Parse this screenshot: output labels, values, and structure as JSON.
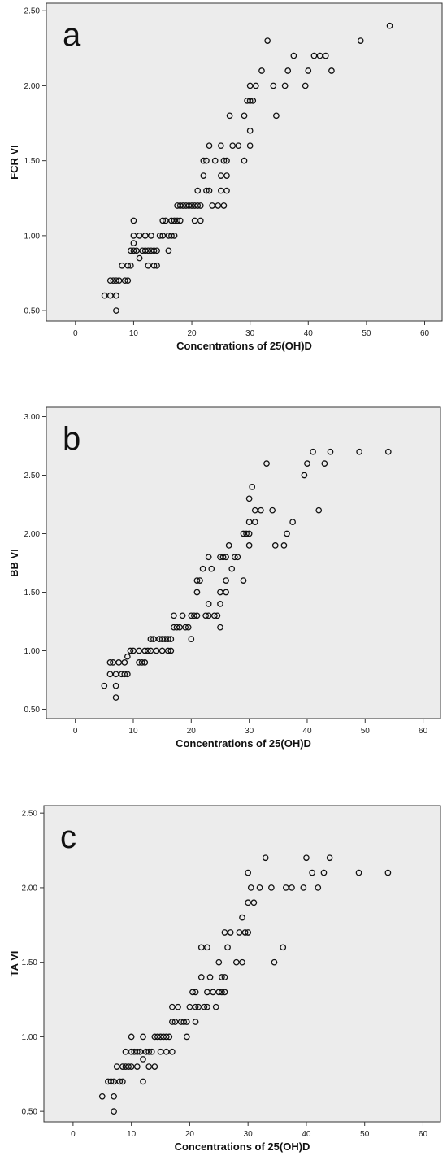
{
  "chart_data": [
    {
      "type": "scatter",
      "panel_label": "a",
      "xlabel": "Concentrations of 25(OH)D",
      "ylabel": "FCR VI",
      "xlim": [
        -5,
        63
      ],
      "ylim": [
        0.43,
        2.55
      ],
      "x_ticks": [
        0,
        10,
        20,
        30,
        40,
        50,
        60
      ],
      "y_ticks": [
        0.5,
        1.0,
        1.5,
        2.0,
        2.5
      ],
      "y_tick_labels": [
        "0.50",
        "1.00",
        "1.50",
        "2.00",
        "2.50"
      ],
      "x_tick_labels": [
        "0",
        "10",
        "20",
        "30",
        "40",
        "50",
        "60"
      ],
      "grid": false,
      "marker": "open-circle",
      "points": [
        [
          5,
          0.6
        ],
        [
          6,
          0.7
        ],
        [
          6,
          0.6
        ],
        [
          6.5,
          0.7
        ],
        [
          7,
          0.6
        ],
        [
          7,
          0.7
        ],
        [
          7,
          0.5
        ],
        [
          7.5,
          0.7
        ],
        [
          8,
          0.8
        ],
        [
          8.5,
          0.7
        ],
        [
          9,
          0.8
        ],
        [
          9,
          0.7
        ],
        [
          9.5,
          0.9
        ],
        [
          9.5,
          0.8
        ],
        [
          10,
          0.9
        ],
        [
          10,
          1.0
        ],
        [
          10,
          0.95
        ],
        [
          10,
          1.1
        ],
        [
          10.5,
          0.9
        ],
        [
          11,
          0.85
        ],
        [
          11,
          1.0
        ],
        [
          11.5,
          0.9
        ],
        [
          12,
          1.0
        ],
        [
          12,
          0.9
        ],
        [
          12.5,
          0.8
        ],
        [
          12.5,
          0.9
        ],
        [
          13,
          1.0
        ],
        [
          13,
          0.9
        ],
        [
          13.5,
          0.8
        ],
        [
          13.5,
          0.9
        ],
        [
          14,
          0.9
        ],
        [
          14,
          0.8
        ],
        [
          14.5,
          1.0
        ],
        [
          15,
          1.1
        ],
        [
          15,
          1.0
        ],
        [
          15.5,
          1.1
        ],
        [
          16,
          1.0
        ],
        [
          16,
          0.9
        ],
        [
          16.5,
          1.1
        ],
        [
          16.5,
          1.0
        ],
        [
          17,
          1.0
        ],
        [
          17,
          1.1
        ],
        [
          17.5,
          1.2
        ],
        [
          17.5,
          1.1
        ],
        [
          18,
          1.1
        ],
        [
          18,
          1.2
        ],
        [
          18.5,
          1.2
        ],
        [
          19,
          1.2
        ],
        [
          19.5,
          1.2
        ],
        [
          20,
          1.2
        ],
        [
          20.5,
          1.1
        ],
        [
          20.5,
          1.2
        ],
        [
          21,
          1.2
        ],
        [
          21,
          1.3
        ],
        [
          21.5,
          1.1
        ],
        [
          21.5,
          1.2
        ],
        [
          22,
          1.5
        ],
        [
          22,
          1.4
        ],
        [
          22.5,
          1.3
        ],
        [
          22.5,
          1.5
        ],
        [
          23,
          1.6
        ],
        [
          23,
          1.3
        ],
        [
          23.5,
          1.2
        ],
        [
          24,
          1.5
        ],
        [
          24.5,
          1.2
        ],
        [
          25,
          1.6
        ],
        [
          25,
          1.4
        ],
        [
          25,
          1.3
        ],
        [
          25.5,
          1.2
        ],
        [
          25.5,
          1.5
        ],
        [
          26,
          1.4
        ],
        [
          26,
          1.3
        ],
        [
          26,
          1.5
        ],
        [
          26.5,
          1.8
        ],
        [
          27,
          1.6
        ],
        [
          28,
          1.6
        ],
        [
          29,
          1.5
        ],
        [
          29,
          1.8
        ],
        [
          29.5,
          1.9
        ],
        [
          30,
          1.9
        ],
        [
          30,
          2.0
        ],
        [
          30,
          1.7
        ],
        [
          30,
          1.6
        ],
        [
          30.5,
          1.9
        ],
        [
          31,
          2.0
        ],
        [
          32,
          2.1
        ],
        [
          33,
          2.3
        ],
        [
          34,
          2.0
        ],
        [
          34.5,
          1.8
        ],
        [
          36,
          2.0
        ],
        [
          36.5,
          2.1
        ],
        [
          37.5,
          2.2
        ],
        [
          39.5,
          2.0
        ],
        [
          40,
          2.1
        ],
        [
          41,
          2.2
        ],
        [
          42,
          2.2
        ],
        [
          43,
          2.2
        ],
        [
          44,
          2.1
        ],
        [
          49,
          2.3
        ],
        [
          54,
          2.4
        ]
      ]
    },
    {
      "type": "scatter",
      "panel_label": "b",
      "xlabel": "Concentrations of 25(OH)D",
      "ylabel": "BB VI",
      "xlim": [
        -5,
        63
      ],
      "ylim": [
        0.42,
        3.08
      ],
      "x_ticks": [
        0,
        10,
        20,
        30,
        40,
        50,
        60
      ],
      "y_ticks": [
        0.5,
        1.0,
        1.5,
        2.0,
        2.5,
        3.0
      ],
      "y_tick_labels": [
        "0.50",
        "1.00",
        "1.50",
        "2.00",
        "2.50",
        "3.00"
      ],
      "x_tick_labels": [
        "0",
        "10",
        "20",
        "30",
        "40",
        "50",
        "60"
      ],
      "grid": false,
      "marker": "open-circle",
      "points": [
        [
          5,
          0.7
        ],
        [
          6,
          0.8
        ],
        [
          6,
          0.9
        ],
        [
          6.5,
          0.9
        ],
        [
          7,
          0.8
        ],
        [
          7,
          0.7
        ],
        [
          7,
          0.6
        ],
        [
          7.5,
          0.9
        ],
        [
          8,
          0.8
        ],
        [
          8.5,
          0.9
        ],
        [
          8.5,
          0.8
        ],
        [
          9,
          0.8
        ],
        [
          9,
          0.95
        ],
        [
          9.5,
          1.0
        ],
        [
          10,
          1.0
        ],
        [
          11,
          1.0
        ],
        [
          11,
          0.9
        ],
        [
          11.5,
          0.9
        ],
        [
          12,
          0.9
        ],
        [
          12,
          1.0
        ],
        [
          12.5,
          1.0
        ],
        [
          13,
          1.1
        ],
        [
          13,
          1.0
        ],
        [
          13.5,
          1.1
        ],
        [
          14,
          1.0
        ],
        [
          14.5,
          1.1
        ],
        [
          15,
          1.1
        ],
        [
          15,
          1.0
        ],
        [
          15.5,
          1.1
        ],
        [
          16,
          1.0
        ],
        [
          16,
          1.1
        ],
        [
          16.5,
          1.1
        ],
        [
          16.5,
          1.0
        ],
        [
          17,
          1.2
        ],
        [
          17,
          1.3
        ],
        [
          17.5,
          1.2
        ],
        [
          18,
          1.2
        ],
        [
          18.5,
          1.3
        ],
        [
          19,
          1.2
        ],
        [
          19.5,
          1.2
        ],
        [
          20,
          1.1
        ],
        [
          20,
          1.3
        ],
        [
          20.5,
          1.3
        ],
        [
          21,
          1.3
        ],
        [
          21,
          1.5
        ],
        [
          21,
          1.6
        ],
        [
          21.5,
          1.6
        ],
        [
          22,
          1.7
        ],
        [
          22.5,
          1.3
        ],
        [
          23,
          1.4
        ],
        [
          23,
          1.3
        ],
        [
          23,
          1.8
        ],
        [
          23.5,
          1.7
        ],
        [
          24,
          1.3
        ],
        [
          24.5,
          1.3
        ],
        [
          25,
          1.2
        ],
        [
          25,
          1.4
        ],
        [
          25,
          1.5
        ],
        [
          25,
          1.8
        ],
        [
          25.5,
          1.8
        ],
        [
          26,
          1.6
        ],
        [
          26,
          1.5
        ],
        [
          26,
          1.8
        ],
        [
          26.5,
          1.9
        ],
        [
          27,
          1.7
        ],
        [
          27.5,
          1.8
        ],
        [
          28,
          1.8
        ],
        [
          29,
          1.6
        ],
        [
          29,
          2.0
        ],
        [
          29.5,
          2.0
        ],
        [
          30,
          2.1
        ],
        [
          30,
          2.0
        ],
        [
          30,
          1.9
        ],
        [
          30,
          2.3
        ],
        [
          30.5,
          2.4
        ],
        [
          31,
          2.2
        ],
        [
          31,
          2.1
        ],
        [
          32,
          2.2
        ],
        [
          33,
          2.6
        ],
        [
          34,
          2.2
        ],
        [
          34.5,
          1.9
        ],
        [
          36,
          1.9
        ],
        [
          36.5,
          2.0
        ],
        [
          37.5,
          2.1
        ],
        [
          39.5,
          2.5
        ],
        [
          40,
          2.6
        ],
        [
          41,
          2.7
        ],
        [
          42,
          2.2
        ],
        [
          43,
          2.6
        ],
        [
          44,
          2.7
        ],
        [
          49,
          2.7
        ],
        [
          54,
          2.7
        ]
      ]
    },
    {
      "type": "scatter",
      "panel_label": "c",
      "xlabel": "Concentrations of 25(OH)D",
      "ylabel": "TA VI",
      "xlim": [
        -5,
        63
      ],
      "ylim": [
        0.43,
        2.55
      ],
      "x_ticks": [
        0,
        10,
        20,
        30,
        40,
        50,
        60
      ],
      "y_ticks": [
        0.5,
        1.0,
        1.5,
        2.0,
        2.5
      ],
      "y_tick_labels": [
        "0.50",
        "1.00",
        "1.50",
        "2.00",
        "2.50"
      ],
      "x_tick_labels": [
        "0",
        "10",
        "20",
        "30",
        "40",
        "50",
        "60"
      ],
      "grid": false,
      "marker": "open-circle",
      "points": [
        [
          5,
          0.6
        ],
        [
          6,
          0.7
        ],
        [
          6.5,
          0.7
        ],
        [
          7,
          0.6
        ],
        [
          7,
          0.5
        ],
        [
          7,
          0.7
        ],
        [
          7.5,
          0.8
        ],
        [
          8,
          0.7
        ],
        [
          8.5,
          0.8
        ],
        [
          8.5,
          0.7
        ],
        [
          9,
          0.8
        ],
        [
          9,
          0.9
        ],
        [
          9.5,
          0.8
        ],
        [
          10,
          0.9
        ],
        [
          10,
          1.0
        ],
        [
          10,
          0.8
        ],
        [
          10.5,
          0.9
        ],
        [
          11,
          0.8
        ],
        [
          11,
          0.9
        ],
        [
          11.5,
          0.9
        ],
        [
          12,
          1.0
        ],
        [
          12,
          0.85
        ],
        [
          12,
          0.7
        ],
        [
          12.5,
          0.9
        ],
        [
          13,
          0.8
        ],
        [
          13,
          0.9
        ],
        [
          13.5,
          0.9
        ],
        [
          14,
          1.0
        ],
        [
          14,
          0.8
        ],
        [
          14.5,
          1.0
        ],
        [
          15,
          1.0
        ],
        [
          15,
          0.9
        ],
        [
          15.5,
          1.0
        ],
        [
          16,
          0.9
        ],
        [
          16,
          1.0
        ],
        [
          16.5,
          1.0
        ],
        [
          17,
          1.1
        ],
        [
          17,
          0.9
        ],
        [
          17,
          1.2
        ],
        [
          17.5,
          1.1
        ],
        [
          18,
          1.2
        ],
        [
          18.5,
          1.1
        ],
        [
          19,
          1.1
        ],
        [
          19.5,
          1.0
        ],
        [
          19.5,
          1.1
        ],
        [
          20,
          1.2
        ],
        [
          20.5,
          1.3
        ],
        [
          21,
          1.1
        ],
        [
          21,
          1.2
        ],
        [
          21,
          1.3
        ],
        [
          21.5,
          1.2
        ],
        [
          22,
          1.4
        ],
        [
          22,
          1.6
        ],
        [
          22.5,
          1.2
        ],
        [
          23,
          1.3
        ],
        [
          23,
          1.6
        ],
        [
          23,
          1.2
        ],
        [
          23.5,
          1.4
        ],
        [
          24,
          1.3
        ],
        [
          24.5,
          1.2
        ],
        [
          25,
          1.3
        ],
        [
          25,
          1.5
        ],
        [
          25.5,
          1.3
        ],
        [
          25.5,
          1.4
        ],
        [
          26,
          1.4
        ],
        [
          26,
          1.3
        ],
        [
          26,
          1.7
        ],
        [
          26.5,
          1.6
        ],
        [
          27,
          1.7
        ],
        [
          28,
          1.5
        ],
        [
          28.5,
          1.7
        ],
        [
          29,
          1.5
        ],
        [
          29,
          1.8
        ],
        [
          29.5,
          1.7
        ],
        [
          30,
          1.7
        ],
        [
          30,
          1.9
        ],
        [
          30,
          2.1
        ],
        [
          30.5,
          2.0
        ],
        [
          31,
          1.9
        ],
        [
          32,
          2.0
        ],
        [
          33,
          2.2
        ],
        [
          34,
          2.0
        ],
        [
          34.5,
          1.5
        ],
        [
          36,
          1.6
        ],
        [
          36.5,
          2.0
        ],
        [
          37.5,
          2.0
        ],
        [
          39.5,
          2.0
        ],
        [
          40,
          2.2
        ],
        [
          41,
          2.1
        ],
        [
          42,
          2.0
        ],
        [
          43,
          2.1
        ],
        [
          44,
          2.2
        ],
        [
          49,
          2.1
        ],
        [
          54,
          2.1
        ]
      ]
    }
  ]
}
